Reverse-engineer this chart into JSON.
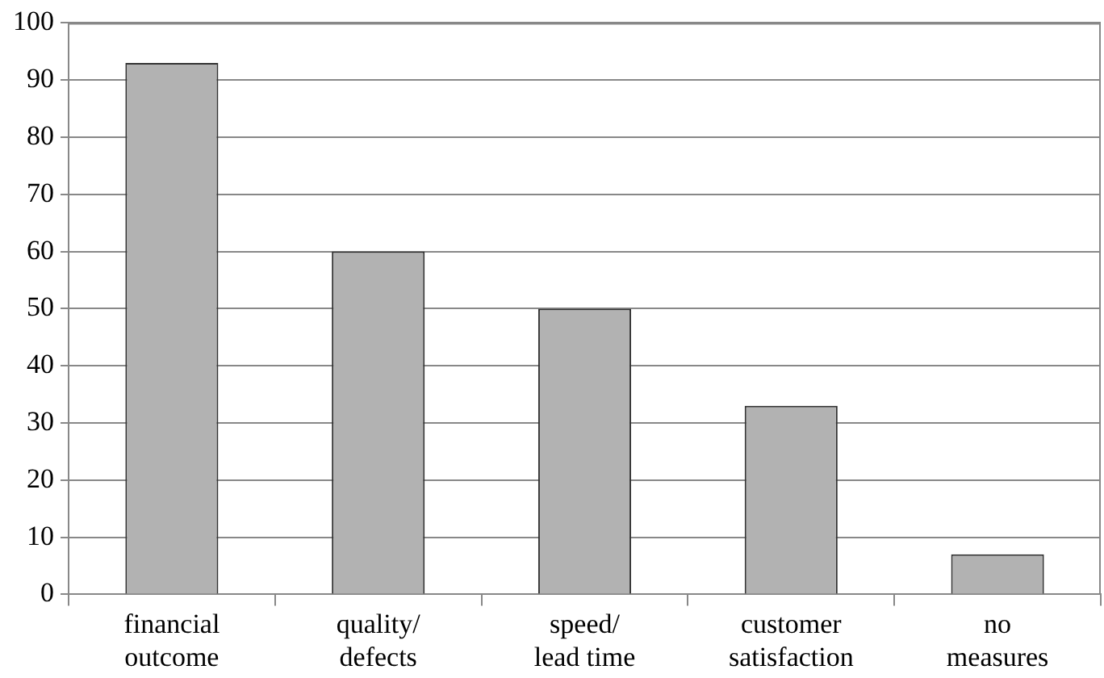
{
  "chart_data": {
    "type": "bar",
    "categories": [
      "financial outcome",
      "quality/ defects",
      "speed/ lead time",
      "customer satisfaction",
      "no measures"
    ],
    "values": [
      93,
      60,
      50,
      33,
      7
    ],
    "color": "#b2b2b2",
    "ylim": [
      0,
      100
    ],
    "yticks": [
      0,
      10,
      20,
      30,
      40,
      50,
      60,
      70,
      80,
      90,
      100
    ],
    "grid": "y",
    "legend": false
  }
}
